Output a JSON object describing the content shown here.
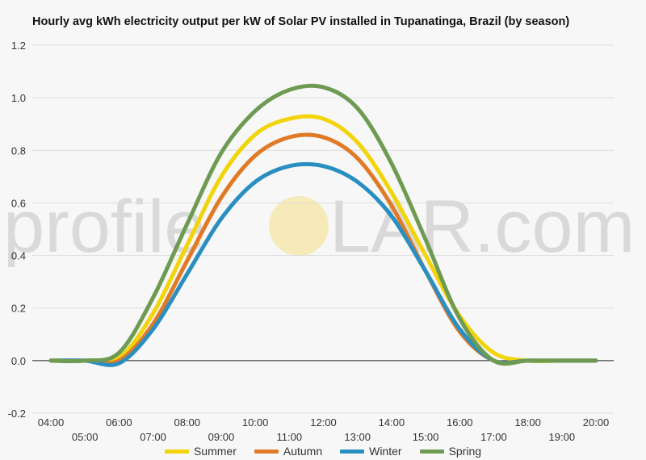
{
  "chart_data": {
    "type": "line",
    "title": "Hourly avg kWh electricity output per kW of Solar PV installed in Tupanatinga, Brazil (by season)",
    "xlabel": "",
    "ylabel": "",
    "ylim": [
      -0.2,
      1.2
    ],
    "yticks": [
      "-0.2",
      "0.0",
      "0.2",
      "0.4",
      "0.6",
      "0.8",
      "1.0",
      "1.2"
    ],
    "categories": [
      "04:00",
      "05:00",
      "06:00",
      "07:00",
      "08:00",
      "09:00",
      "10:00",
      "11:00",
      "12:00",
      "13:00",
      "14:00",
      "15:00",
      "16:00",
      "17:00",
      "18:00",
      "19:00",
      "20:00"
    ],
    "grid": true,
    "legend_position": "bottom",
    "series": [
      {
        "name": "Summer",
        "color": "#f2d40a",
        "values": [
          0.0,
          0.0,
          0.01,
          0.18,
          0.44,
          0.7,
          0.86,
          0.92,
          0.92,
          0.83,
          0.64,
          0.4,
          0.17,
          0.03,
          0.0,
          0.0,
          0.0
        ]
      },
      {
        "name": "Autumn",
        "color": "#e07a26",
        "values": [
          0.0,
          0.0,
          0.0,
          0.14,
          0.38,
          0.62,
          0.78,
          0.85,
          0.85,
          0.77,
          0.59,
          0.34,
          0.11,
          0.0,
          0.0,
          0.0,
          0.0
        ]
      },
      {
        "name": "Winter",
        "color": "#2a8fc0",
        "values": [
          0.0,
          0.0,
          -0.01,
          0.12,
          0.33,
          0.54,
          0.68,
          0.74,
          0.74,
          0.68,
          0.55,
          0.34,
          0.12,
          0.0,
          0.0,
          0.0,
          0.0
        ]
      },
      {
        "name": "Spring",
        "color": "#6e9a52",
        "values": [
          0.0,
          0.0,
          0.03,
          0.24,
          0.52,
          0.79,
          0.95,
          1.03,
          1.04,
          0.96,
          0.75,
          0.46,
          0.16,
          0.0,
          0.0,
          0.0,
          0.0
        ]
      }
    ]
  },
  "watermark": {
    "left": "profile",
    "right": "LAR.com",
    "sun_color": "#f5e6a8"
  }
}
